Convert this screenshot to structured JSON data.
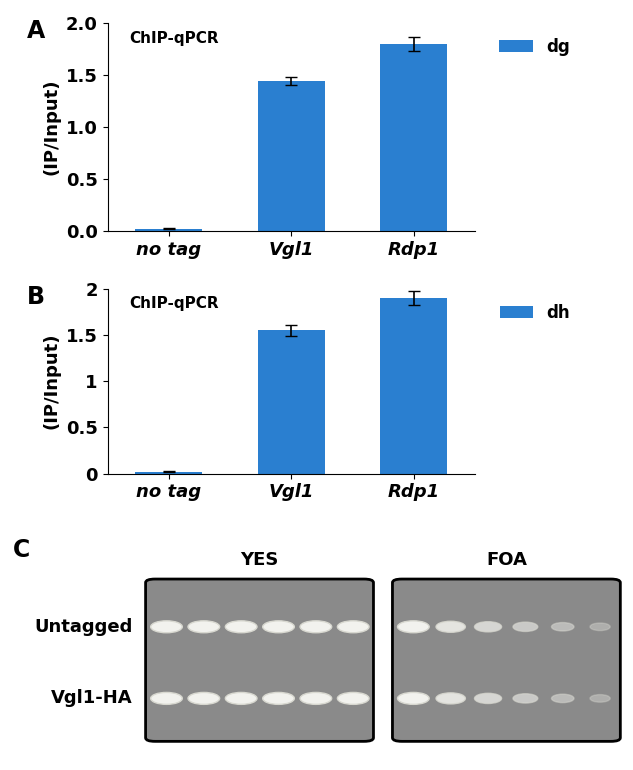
{
  "chart_data": [
    {
      "type": "bar",
      "title": "ChIP-qPCR",
      "annotations": [
        "A"
      ],
      "y_label": "(IP/Input)",
      "categories": [
        "no tag",
        "Vgl1",
        "Rdp1"
      ],
      "series": [
        {
          "name": "dg",
          "color": "#2a7fd0",
          "values": [
            0.02,
            1.44,
            1.8
          ],
          "errors": [
            0.005,
            0.04,
            0.07
          ]
        }
      ],
      "ylim": [
        0,
        2.0
      ],
      "yticks": [
        {
          "value": 0,
          "label": "0.0"
        },
        {
          "value": 0.5,
          "label": "0.5"
        },
        {
          "value": 1.0,
          "label": "1.0"
        },
        {
          "value": 1.5,
          "label": "1.5"
        },
        {
          "value": 2.0,
          "label": "2.0"
        }
      ],
      "legend": "upper right"
    },
    {
      "type": "bar",
      "title": "ChIP-qPCR",
      "annotations": [
        "B"
      ],
      "y_label": "(IP/Input)",
      "categories": [
        "no tag",
        "Vgl1",
        "Rdp1"
      ],
      "series": [
        {
          "name": "dh",
          "color": "#2a7fd0",
          "values": [
            0.02,
            1.55,
            1.9
          ],
          "errors": [
            0.005,
            0.06,
            0.08
          ]
        }
      ],
      "ylim": [
        0,
        2
      ],
      "yticks": [
        0,
        0.5,
        1,
        1.5,
        2
      ],
      "legend": "upper right"
    }
  ],
  "panel_c": {
    "label": "C",
    "columns": [
      "YES",
      "FOA"
    ],
    "rows": [
      "Untagged",
      "Vgl1-HA"
    ]
  }
}
